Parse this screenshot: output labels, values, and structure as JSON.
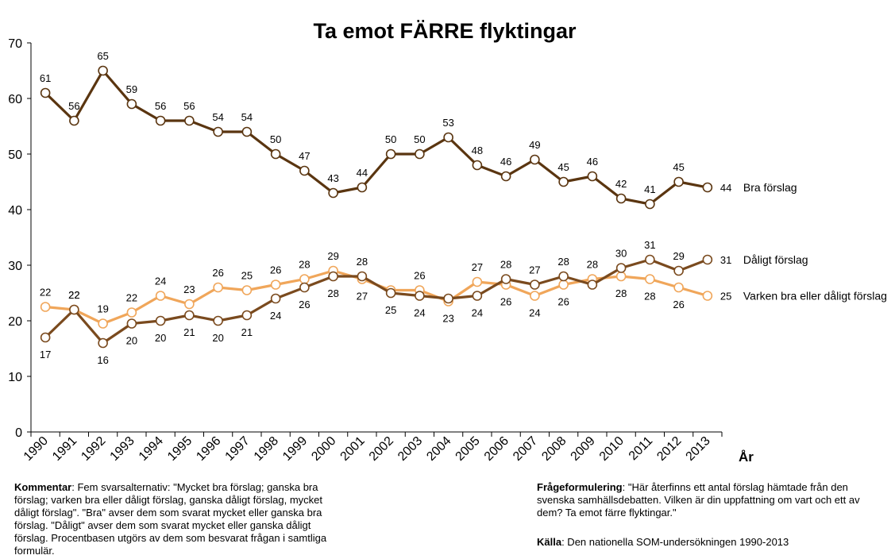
{
  "chart_data": {
    "type": "line",
    "title": "Ta emot FÄRRE flyktingar",
    "xlabel": "År",
    "ylabel": "",
    "ylim": [
      0,
      70
    ],
    "yticks": [
      0,
      10,
      20,
      30,
      40,
      50,
      60,
      70
    ],
    "grid": false,
    "categories": [
      "1990",
      "1991",
      "1992",
      "1993",
      "1994",
      "1995",
      "1996",
      "1997",
      "1998",
      "1999",
      "2000",
      "2001",
      "2002",
      "2003",
      "2004",
      "2005",
      "2006",
      "2007",
      "2008",
      "2009",
      "2010",
      "2011",
      "2012",
      "2013"
    ],
    "series": [
      {
        "name": "Bra förslag",
        "end_label": "44",
        "color": "#5a3510",
        "values": [
          61,
          56,
          65,
          59,
          56,
          56,
          54,
          54,
          50,
          47,
          43,
          44,
          50,
          50,
          53,
          48,
          46,
          49,
          45,
          46,
          42,
          41,
          45,
          44
        ],
        "labels": [
          "61",
          "56",
          "65",
          "59",
          "56",
          "56",
          "54",
          "54",
          "50",
          "47",
          "43",
          "44",
          "50",
          "50",
          "53",
          "48",
          "46",
          "49",
          "45",
          "46",
          "42",
          "41",
          "45",
          ""
        ]
      },
      {
        "name": "Dåligt förslag",
        "end_label": "31",
        "color": "#7a4a1e",
        "values": [
          17,
          22,
          16,
          19.5,
          20,
          21,
          20,
          21,
          24,
          26,
          28,
          28,
          25,
          24.5,
          24,
          24.5,
          27.5,
          26.5,
          28,
          26.5,
          29.5,
          31,
          29,
          31
        ],
        "labels": [
          "17",
          "22",
          "16",
          "20",
          "20",
          "21",
          "20",
          "21",
          "24",
          "26",
          "28",
          "28",
          "25",
          "24",
          "",
          "24",
          "28",
          "27",
          "28",
          "",
          "30",
          "31",
          "29",
          ""
        ]
      },
      {
        "name": "Varken bra eller dåligt förslag",
        "end_label": "25",
        "color": "#f0a65a",
        "values": [
          22.5,
          22,
          19.5,
          21.5,
          24.5,
          23,
          26,
          25.5,
          26.5,
          27.5,
          29,
          27.5,
          25.5,
          25.5,
          23.5,
          27,
          26.5,
          24.5,
          26.5,
          27.5,
          28,
          27.5,
          26,
          24.5
        ],
        "labels": [
          "22",
          "22",
          "19",
          "22",
          "24",
          "23",
          "26",
          "25",
          "26",
          "28",
          "29",
          "27",
          "",
          "26",
          "23",
          "27",
          "26",
          "24",
          "26",
          "28",
          "28",
          "28",
          "26",
          ""
        ]
      }
    ]
  },
  "comment": {
    "label": "Kommentar",
    "lines": [
      ": Fem svarsalternativ: \"Mycket bra förslag; ganska bra",
      "förslag; varken bra eller dåligt förslag, ganska dåligt förslag, mycket",
      "dåligt förslag\". \"Bra\" avser dem som svarat mycket eller ganska bra",
      "förslag. \"Dåligt\" avser dem som svarat mycket eller ganska dåligt",
      "förslag. Procentbasen utgörs av dem som besvarat frågan i samtliga",
      "formulär."
    ]
  },
  "question": {
    "label": "Frågeformulering",
    "lines": [
      ": \"Här återfinns ett antal förslag hämtade från den",
      "svenska samhällsdebatten. Vilken är din uppfattning om vart och ett av",
      "dem? Ta emot färre flyktingar.\""
    ]
  },
  "source": {
    "label": "Källa",
    "text": ": Den nationella SOM-undersökningen 1990-2013"
  }
}
